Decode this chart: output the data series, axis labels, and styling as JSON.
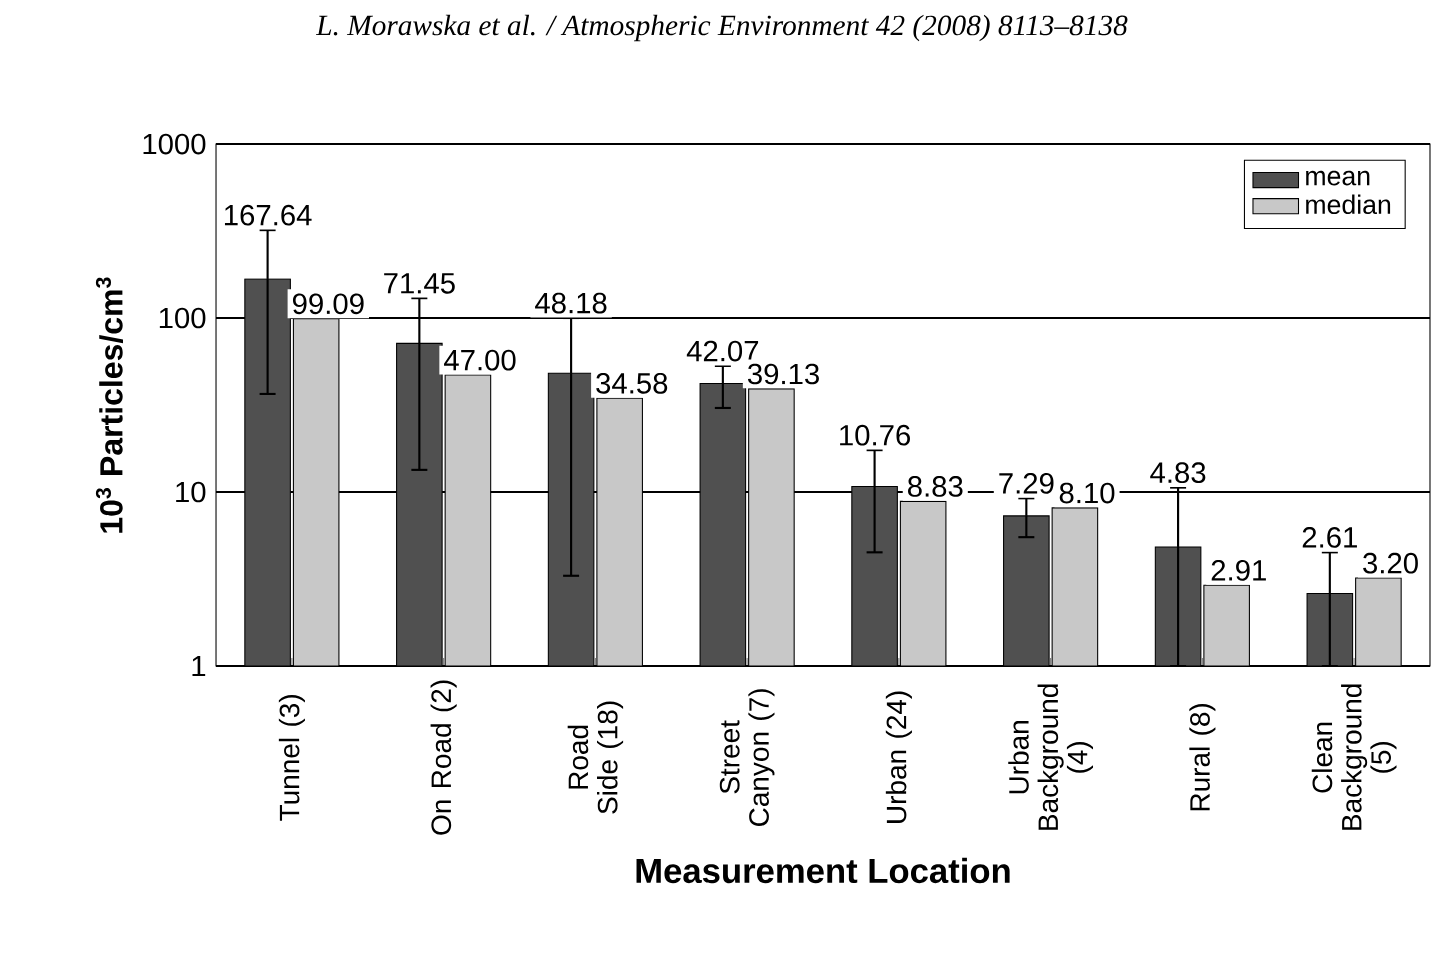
{
  "chart_data": {
    "type": "bar",
    "title": "L. Morawska et al. / Atmospheric Environment 42 (2008) 8113–8138",
    "xlabel": "Measurement Location",
    "ylabel": "10$^{3}$ Particles/cm$^{3}$",
    "categories": [
      "Tunnel (3)",
      "On Road (2)",
      "Road Side (18)",
      "Street Canyon (7)",
      "Urban (24)",
      "Urban Background (4)",
      "Rural (8)",
      "Clean Background (5)"
    ],
    "series": [
      {
        "name": "mean",
        "color": "#505050",
        "values": [
          167.64,
          71.45,
          48.18,
          42.07,
          10.76,
          7.29,
          4.83,
          2.61
        ],
        "value_labels": [
          "167.64",
          "71.45",
          "48.18",
          "42.07",
          "10.76",
          "7.29",
          "4.83",
          "2.61"
        ],
        "errors": [
          [
            36.6,
            320
          ],
          [
            13.4,
            130
          ],
          [
            3.3,
            100
          ],
          [
            30.4,
            53
          ],
          [
            4.5,
            17.4
          ],
          [
            5.5,
            9.2
          ],
          [
            1.0,
            10.6
          ],
          [
            1.0,
            4.5
          ]
        ]
      },
      {
        "name": "median",
        "color": "#c8c8c8",
        "values": [
          99.09,
          47.0,
          34.58,
          39.13,
          8.83,
          8.1,
          2.91,
          3.2
        ],
        "value_labels": [
          "99.09",
          "47.00",
          "34.58",
          "39.13",
          "8.83",
          "8.10",
          "2.91",
          "3.20"
        ]
      }
    ],
    "log": "y",
    "ylim": [
      1,
      1000
    ],
    "yticks": [
      1,
      10,
      100,
      1000
    ],
    "grid": "y",
    "legend": "top right"
  }
}
